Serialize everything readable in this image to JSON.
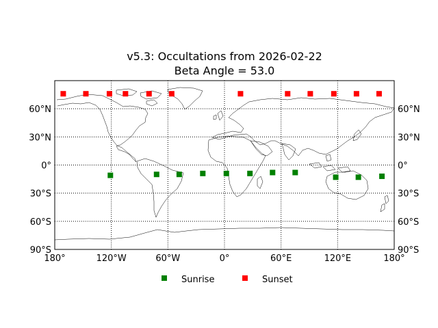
{
  "title": {
    "line1": "v5.3: Occultations from 2026-02-22",
    "line2": "Beta Angle = 53.0"
  },
  "colors": {
    "sunrise": "#008000",
    "sunset": "#ff0000",
    "grid": "#000000",
    "coastline": "#000000"
  },
  "chart_data": {
    "type": "scatter",
    "projection": "equirectangular",
    "xlim": [
      -180,
      180
    ],
    "ylim": [
      -90,
      90
    ],
    "grid": true,
    "grid_style": "dotted",
    "legend_placement": "bottom-center",
    "x_ticks": [
      -180,
      -120,
      -60,
      0,
      60,
      120,
      180
    ],
    "x_tick_labels": [
      "180°",
      "120°W",
      "60°W",
      "0°",
      "60°E",
      "120°E",
      "180°"
    ],
    "y_ticks": [
      -90,
      -60,
      -30,
      0,
      30,
      60
    ],
    "y_tick_labels": [
      "90°S",
      "60°S",
      "30°S",
      "0°",
      "30°N",
      "60°N"
    ],
    "series": [
      {
        "name": "Sunrise",
        "color": "#008000",
        "marker": "square",
        "points": [
          {
            "lon": -121,
            "lat": -11
          },
          {
            "lon": -72,
            "lat": -10
          },
          {
            "lon": -48,
            "lat": -10
          },
          {
            "lon": -23,
            "lat": -9
          },
          {
            "lon": 2,
            "lat": -9
          },
          {
            "lon": 27,
            "lat": -9
          },
          {
            "lon": 51,
            "lat": -8
          },
          {
            "lon": 75,
            "lat": -8
          },
          {
            "lon": 118,
            "lat": -13
          },
          {
            "lon": 142,
            "lat": -13
          },
          {
            "lon": 167,
            "lat": -12
          }
        ]
      },
      {
        "name": "Sunset",
        "color": "#ff0000",
        "marker": "square",
        "points": [
          {
            "lon": -171,
            "lat": 76
          },
          {
            "lon": -147,
            "lat": 76
          },
          {
            "lon": -122,
            "lat": 76
          },
          {
            "lon": -105,
            "lat": 76
          },
          {
            "lon": -80,
            "lat": 76
          },
          {
            "lon": -56,
            "lat": 76
          },
          {
            "lon": 17,
            "lat": 76
          },
          {
            "lon": 67,
            "lat": 76
          },
          {
            "lon": 91,
            "lat": 76
          },
          {
            "lon": 116,
            "lat": 76
          },
          {
            "lon": 140,
            "lat": 76
          },
          {
            "lon": 164,
            "lat": 76
          }
        ]
      }
    ]
  }
}
